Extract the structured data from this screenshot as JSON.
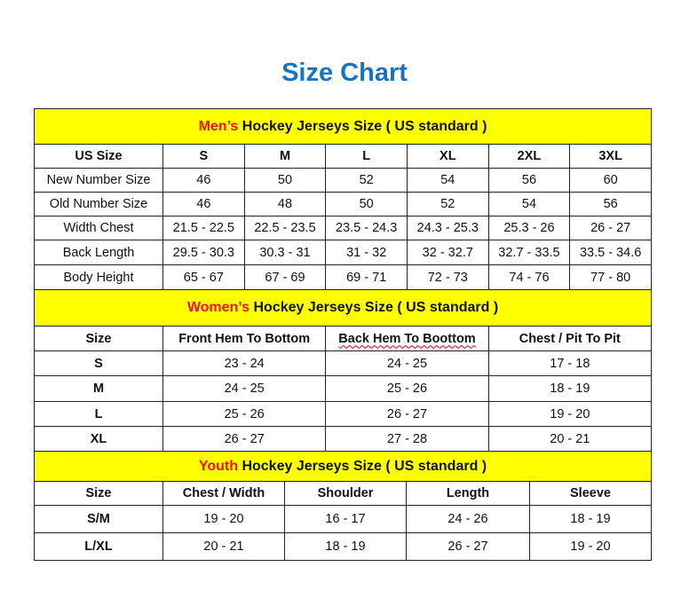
{
  "title": "Size Chart",
  "colors": {
    "title": "#1874c0",
    "header_bg": "#ffff00",
    "highlight": "#e8151b"
  },
  "mens": {
    "header_highlight": "Men’s",
    "header_rest": " Hockey Jerseys Size ( US standard )",
    "columns": [
      "US Size",
      "S",
      "M",
      "L",
      "XL",
      "2XL",
      "3XL"
    ],
    "rows": [
      [
        "New Number Size",
        "46",
        "50",
        "52",
        "54",
        "56",
        "60"
      ],
      [
        "Old Number Size",
        "46",
        "48",
        "50",
        "52",
        "54",
        "56"
      ],
      [
        "Width Chest",
        "21.5 - 22.5",
        "22.5 - 23.5",
        "23.5 - 24.3",
        "24.3 - 25.3",
        "25.3 - 26",
        "26 - 27"
      ],
      [
        "Back Length",
        "29.5 - 30.3",
        "30.3 - 31",
        "31 - 32",
        "32 - 32.7",
        "32.7 - 33.5",
        "33.5 - 34.6"
      ],
      [
        "Body Height",
        "65 - 67",
        "67 - 69",
        "69 - 71",
        "72 - 73",
        "74 - 76",
        "77 - 80"
      ]
    ]
  },
  "womens": {
    "header_highlight": "Women’s",
    "header_rest": " Hockey Jerseys Size ( US standard )",
    "columns": [
      "Size",
      "Front Hem To Bottom",
      "Back Hem To Boottom",
      "Chest / Pit To Pit"
    ],
    "rows": [
      [
        "S",
        "23 - 24",
        "24 - 25",
        "17 - 18"
      ],
      [
        "M",
        "24 - 25",
        "25 - 26",
        "18 - 19"
      ],
      [
        "L",
        "25 - 26",
        "26 - 27",
        "19 - 20"
      ],
      [
        "XL",
        "26 - 27",
        "27 - 28",
        "20 - 21"
      ]
    ]
  },
  "youth": {
    "header_highlight": "Youth",
    "header_rest": " Hockey Jerseys Size ( US standard )",
    "columns": [
      "Size",
      "Chest / Width",
      "Shoulder",
      "Length",
      "Sleeve"
    ],
    "rows": [
      [
        "S/M",
        "19 - 20",
        "16 - 17",
        "24 - 26",
        "18 - 19"
      ],
      [
        "L/XL",
        "20 - 21",
        "18 - 19",
        "26 - 27",
        "19 - 20"
      ]
    ]
  }
}
